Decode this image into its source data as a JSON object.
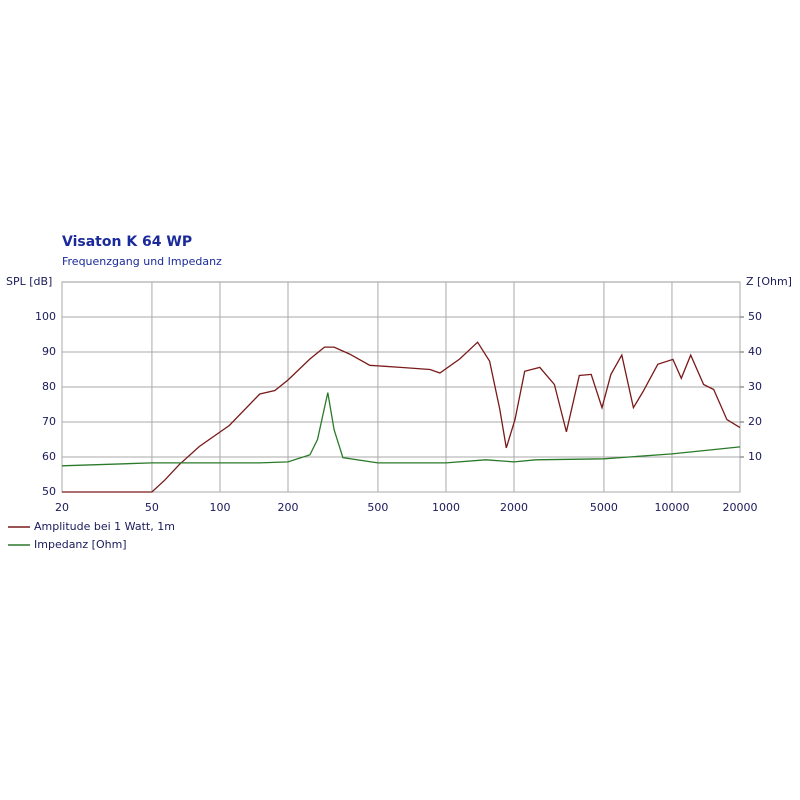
{
  "chart_data": {
    "type": "line",
    "title": "Visaton K 64 WP",
    "subtitle": "Frequenzgang und Impedanz",
    "y_label": "SPL [dB]",
    "y2_label": "Z [Ohm]",
    "xscale": "log",
    "grid": true,
    "xlim": [
      20,
      20000
    ],
    "xticks": [
      20,
      50,
      100,
      200,
      500,
      1000,
      2000,
      5000,
      10000,
      20000
    ],
    "ylim": [
      50,
      110
    ],
    "yticks": [
      50,
      60,
      70,
      80,
      90,
      100
    ],
    "y2lim": [
      0,
      60
    ],
    "y2ticks": [
      10,
      20,
      30,
      40,
      50
    ],
    "legend": "bottom-left",
    "series": [
      {
        "name": "Amplitude bei 1 Watt, 1m",
        "color": "#7a1a1a",
        "x": [
          20,
          50,
          57,
          66,
          81,
          110,
          150,
          175,
          200,
          250,
          290,
          320,
          375,
          460,
          630,
          850,
          940,
          1150,
          1380,
          1560,
          1730,
          1850,
          2020,
          2230,
          2600,
          3020,
          3410,
          3890,
          4390,
          4900,
          5370,
          6000,
          6750,
          7450,
          8660,
          10100,
          11000,
          12100,
          13800,
          15300,
          17500,
          20000
        ],
        "values": [
          50,
          50,
          53.4,
          57.8,
          63,
          69,
          78,
          79,
          82,
          88,
          91.4,
          91.4,
          89.4,
          86.2,
          85.6,
          85,
          84,
          88,
          92.8,
          87.4,
          73.6,
          62.6,
          70.7,
          84.5,
          85.6,
          80.7,
          67.2,
          83.3,
          83.6,
          74.1,
          83.6,
          89.1,
          74.1,
          78.7,
          86.5,
          87.9,
          82.5,
          89.1,
          80.7,
          79.3,
          70.7,
          68.4
        ]
      },
      {
        "name": "Impedanz [Ohm]",
        "color": "#2a7a2a",
        "axis": "y2",
        "x": [
          20,
          50,
          150,
          200,
          250,
          270,
          300,
          320,
          350,
          500,
          1000,
          1500,
          2000,
          2500,
          5000,
          10000,
          20000
        ],
        "values": [
          7.5,
          8.3,
          8.3,
          8.6,
          10.6,
          15,
          28.4,
          17.8,
          9.8,
          8.3,
          8.3,
          9.2,
          8.6,
          9.2,
          9.5,
          10.9,
          12.9
        ]
      }
    ]
  }
}
